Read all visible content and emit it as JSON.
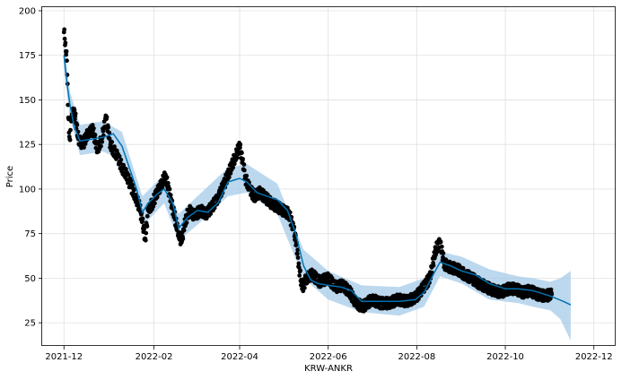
{
  "chart_data": {
    "type": "line",
    "title": "",
    "xlabel": "KRW-ANKR",
    "ylabel": "Price",
    "xlim": [
      "2021-11-16",
      "2022-12-16"
    ],
    "ylim": [
      12,
      202
    ],
    "x_ticks": [
      "2021-12",
      "2022-02",
      "2022-04",
      "2022-06",
      "2022-08",
      "2022-10",
      "2022-12"
    ],
    "y_ticks": [
      25,
      50,
      75,
      100,
      125,
      150,
      175,
      200
    ],
    "grid": true,
    "colors": {
      "forecast_line": "#0072b2",
      "uncertainty_band": "#a6cbe8",
      "observed_points": "#000000",
      "grid": "#e0e0e0",
      "frame": "#000000"
    },
    "series": [
      {
        "kind": "forecast",
        "x": [
          "2021-12-01",
          "2021-12-03",
          "2021-12-05",
          "2021-12-08",
          "2021-12-12",
          "2021-12-20",
          "2021-12-28",
          "2022-01-04",
          "2022-01-10",
          "2022-01-15",
          "2022-01-20",
          "2022-01-24",
          "2022-01-28",
          "2022-02-03",
          "2022-02-08",
          "2022-02-14",
          "2022-02-18",
          "2022-02-24",
          "2022-03-03",
          "2022-03-10",
          "2022-03-17",
          "2022-03-24",
          "2022-04-01",
          "2022-04-06",
          "2022-04-13",
          "2022-04-20",
          "2022-04-27",
          "2022-05-04",
          "2022-05-10",
          "2022-05-15",
          "2022-05-20",
          "2022-05-25",
          "2022-06-01",
          "2022-06-10",
          "2022-06-17",
          "2022-06-24",
          "2022-07-01",
          "2022-07-10",
          "2022-07-20",
          "2022-07-31",
          "2022-08-06",
          "2022-08-13",
          "2022-08-17",
          "2022-08-24",
          "2022-09-01",
          "2022-09-10",
          "2022-09-20",
          "2022-10-01",
          "2022-10-10",
          "2022-10-20",
          "2022-11-01",
          "2022-11-10",
          "2022-11-15"
        ],
        "y": [
          175,
          160,
          148,
          135,
          127,
          128,
          129,
          131,
          124,
          112,
          100,
          87,
          92,
          97,
          100,
          92,
          78,
          84,
          88,
          87,
          92,
          104,
          106,
          104,
          98,
          96,
          94,
          88,
          74,
          57,
          49,
          47,
          46,
          45,
          43,
          37,
          37,
          37,
          37,
          38,
          42,
          53,
          59,
          57,
          54,
          52,
          47,
          44,
          44,
          43,
          40,
          37,
          35
        ]
      },
      {
        "kind": "uncertainty",
        "x": [
          "2021-12-01",
          "2021-12-05",
          "2021-12-12",
          "2021-12-28",
          "2022-01-10",
          "2022-01-24",
          "2022-02-08",
          "2022-02-18",
          "2022-03-03",
          "2022-03-24",
          "2022-04-06",
          "2022-04-27",
          "2022-05-15",
          "2022-06-01",
          "2022-06-24",
          "2022-07-20",
          "2022-08-06",
          "2022-08-17",
          "2022-09-01",
          "2022-09-20",
          "2022-10-10",
          "2022-10-20",
          "2022-11-01",
          "2022-11-08",
          "2022-11-15"
        ],
        "upper": [
          182,
          155,
          136,
          138,
          132,
          96,
          108,
          86,
          96,
          112,
          114,
          103,
          66,
          54,
          46,
          45,
          50,
          65,
          62,
          55,
          51,
          50,
          48,
          50,
          54
        ],
        "lower": [
          168,
          140,
          119,
          121,
          116,
          79,
          92,
          71,
          80,
          96,
          98,
          86,
          50,
          38,
          31,
          29,
          34,
          51,
          47,
          38,
          36,
          34,
          32,
          27,
          15
        ]
      },
      {
        "kind": "observed",
        "x": [
          "2021-12-01",
          "2021-12-02",
          "2021-12-03",
          "2021-12-04",
          "2021-12-05",
          "2021-12-06",
          "2021-12-08",
          "2021-12-11",
          "2021-12-14",
          "2021-12-18",
          "2021-12-21",
          "2021-12-24",
          "2021-12-27",
          "2021-12-30",
          "2022-01-02",
          "2022-01-04",
          "2022-01-07",
          "2022-01-10",
          "2022-01-13",
          "2022-01-16",
          "2022-01-19",
          "2022-01-22",
          "2022-01-24",
          "2022-01-26",
          "2022-01-28",
          "2022-01-31",
          "2022-02-03",
          "2022-02-06",
          "2022-02-09",
          "2022-02-12",
          "2022-02-15",
          "2022-02-18",
          "2022-02-20",
          "2022-02-22",
          "2022-02-25",
          "2022-03-01",
          "2022-03-05",
          "2022-03-09",
          "2022-03-13",
          "2022-03-17",
          "2022-03-21",
          "2022-03-25",
          "2022-03-29",
          "2022-04-01",
          "2022-04-03",
          "2022-04-05",
          "2022-04-08",
          "2022-04-11",
          "2022-04-15",
          "2022-04-19",
          "2022-04-23",
          "2022-04-27",
          "2022-05-01",
          "2022-05-05",
          "2022-05-08",
          "2022-05-10",
          "2022-05-12",
          "2022-05-14",
          "2022-05-17",
          "2022-05-21",
          "2022-05-26",
          "2022-06-01",
          "2022-06-06",
          "2022-06-11",
          "2022-06-16",
          "2022-06-20",
          "2022-06-25",
          "2022-07-01",
          "2022-07-07",
          "2022-07-13",
          "2022-07-19",
          "2022-07-25",
          "2022-07-31",
          "2022-08-05",
          "2022-08-10",
          "2022-08-14",
          "2022-08-17",
          "2022-08-20",
          "2022-08-24",
          "2022-08-29",
          "2022-09-03",
          "2022-09-08",
          "2022-09-13",
          "2022-09-18",
          "2022-09-23",
          "2022-09-28",
          "2022-10-03",
          "2022-10-08",
          "2022-10-13",
          "2022-10-18",
          "2022-10-23",
          "2022-10-28",
          "2022-11-02"
        ],
        "y": [
          188,
          182,
          172,
          140,
          128,
          138,
          145,
          128,
          125,
          132,
          133,
          122,
          128,
          140,
          125,
          122,
          118,
          112,
          108,
          102,
          96,
          90,
          82,
          72,
          88,
          92,
          98,
          102,
          108,
          96,
          85,
          75,
          70,
          80,
          88,
          85,
          88,
          86,
          90,
          95,
          102,
          110,
          118,
          124,
          116,
          106,
          100,
          96,
          98,
          95,
          92,
          90,
          88,
          86,
          78,
          70,
          56,
          44,
          50,
          52,
          48,
          50,
          45,
          46,
          42,
          36,
          34,
          38,
          36,
          36,
          38,
          37,
          39,
          44,
          50,
          66,
          70,
          58,
          56,
          55,
          52,
          50,
          47,
          45,
          43,
          42,
          44,
          44,
          42,
          43,
          41,
          40,
          41
        ]
      }
    ]
  }
}
